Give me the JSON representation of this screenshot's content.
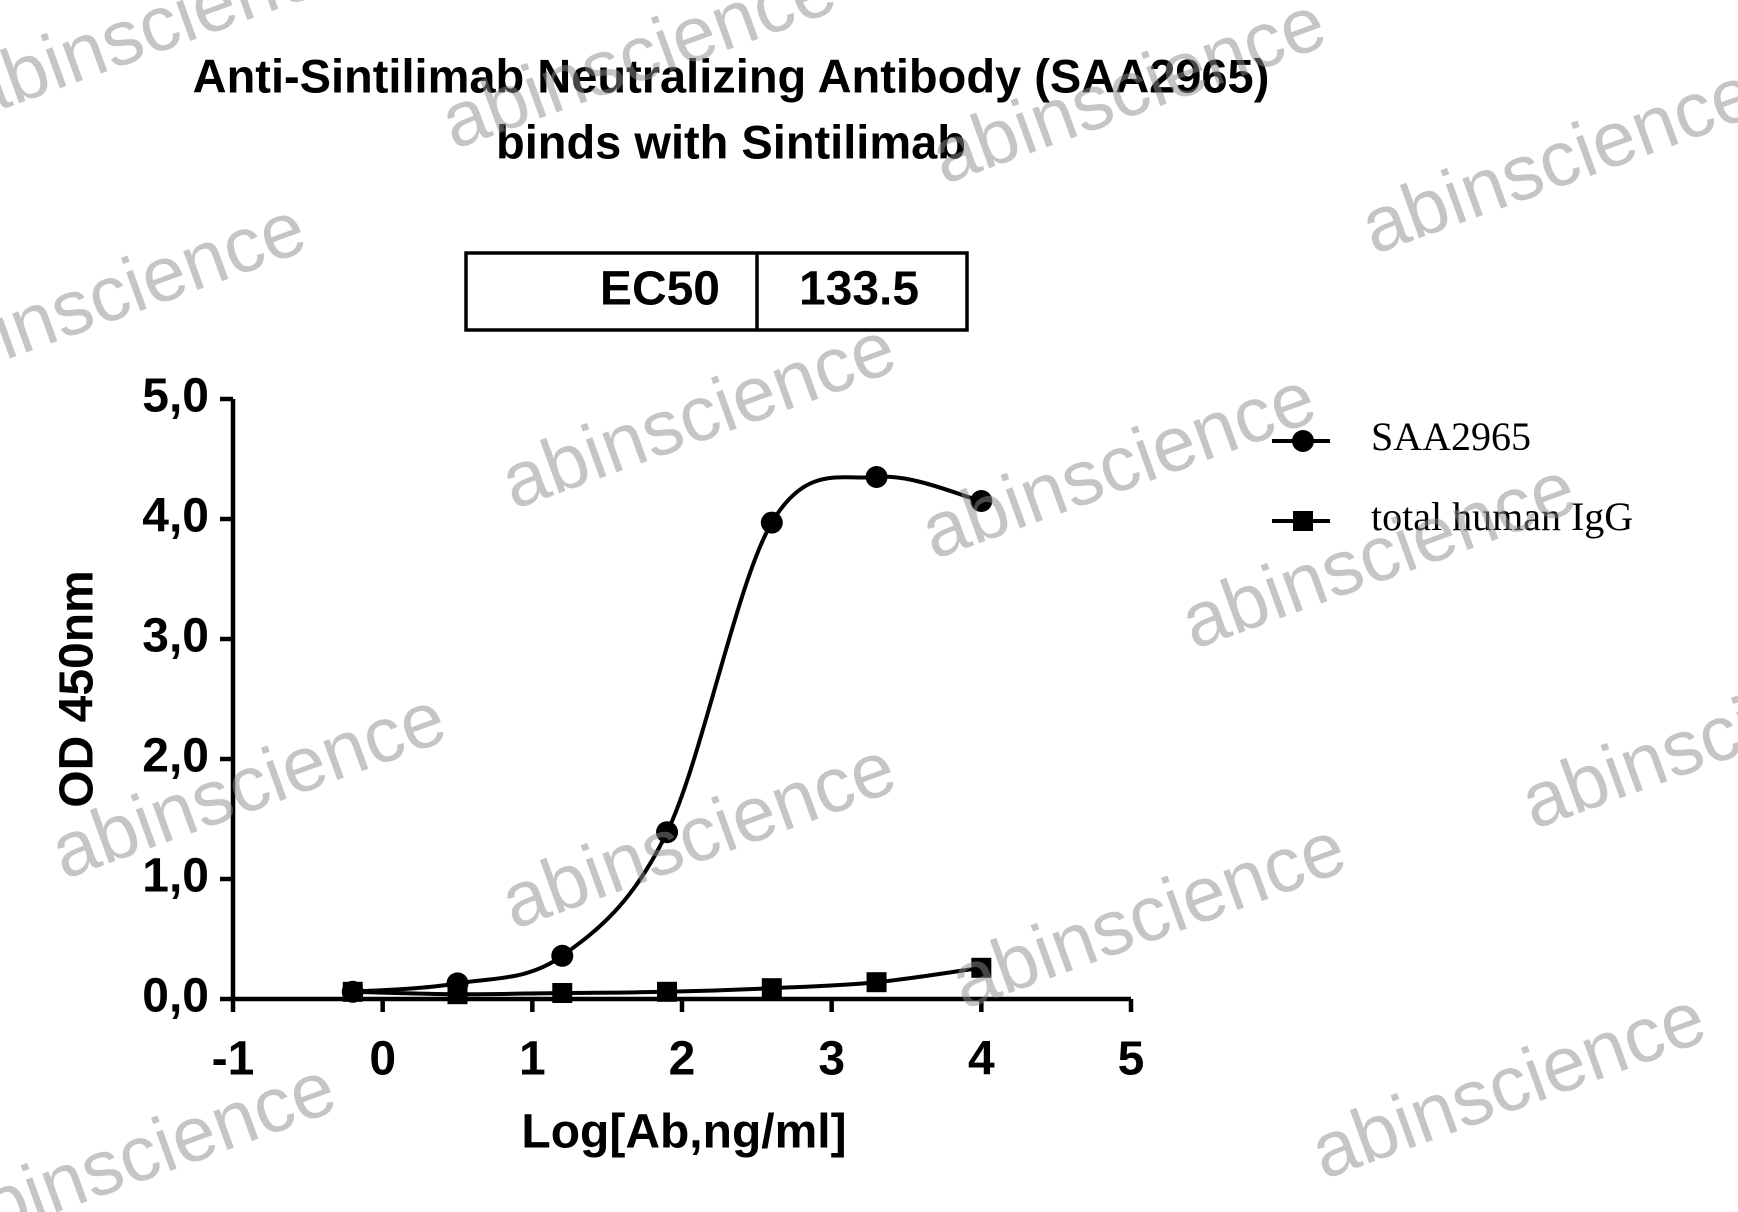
{
  "chart_data": {
    "type": "scatter",
    "title": [
      "Anti-Sintilimab Neutralizing Antibody (SAA2965)",
      "binds with Sintilimab"
    ],
    "ec50_table": [
      "EC50",
      "133.5"
    ],
    "x_label": "Log[Ab,ng/ml]",
    "y_label": "OD 450nm",
    "watermark": "abinscience",
    "xlim": [
      -1,
      5
    ],
    "xticks": [
      -1,
      0,
      1,
      2,
      3,
      4,
      5
    ],
    "ylim": [
      0,
      5
    ],
    "yticks": [
      {
        "value": 0,
        "label": "0,0"
      },
      {
        "value": 1,
        "label": "1,0"
      },
      {
        "value": 2,
        "label": "2,0"
      },
      {
        "value": 3,
        "label": "3,0"
      },
      {
        "value": 4,
        "label": "4,0"
      },
      {
        "value": 5,
        "label": "5,0"
      }
    ],
    "legend": "top-right",
    "series": [
      {
        "name": "SAA2965",
        "color": "#000000",
        "marker": "circle",
        "x": [
          -0.2,
          0.5,
          1.2,
          1.9,
          2.6,
          3.3,
          4.0
        ],
        "values": [
          0.06,
          0.13,
          0.36,
          1.39,
          3.97,
          4.35,
          4.15
        ]
      },
      {
        "name": "total human IgG",
        "color": "#000000",
        "marker": "square",
        "x": [
          -0.2,
          0.5,
          1.2,
          1.9,
          2.6,
          3.3,
          4.0
        ],
        "values": [
          0.06,
          0.04,
          0.05,
          0.06,
          0.09,
          0.14,
          0.26
        ]
      }
    ]
  }
}
